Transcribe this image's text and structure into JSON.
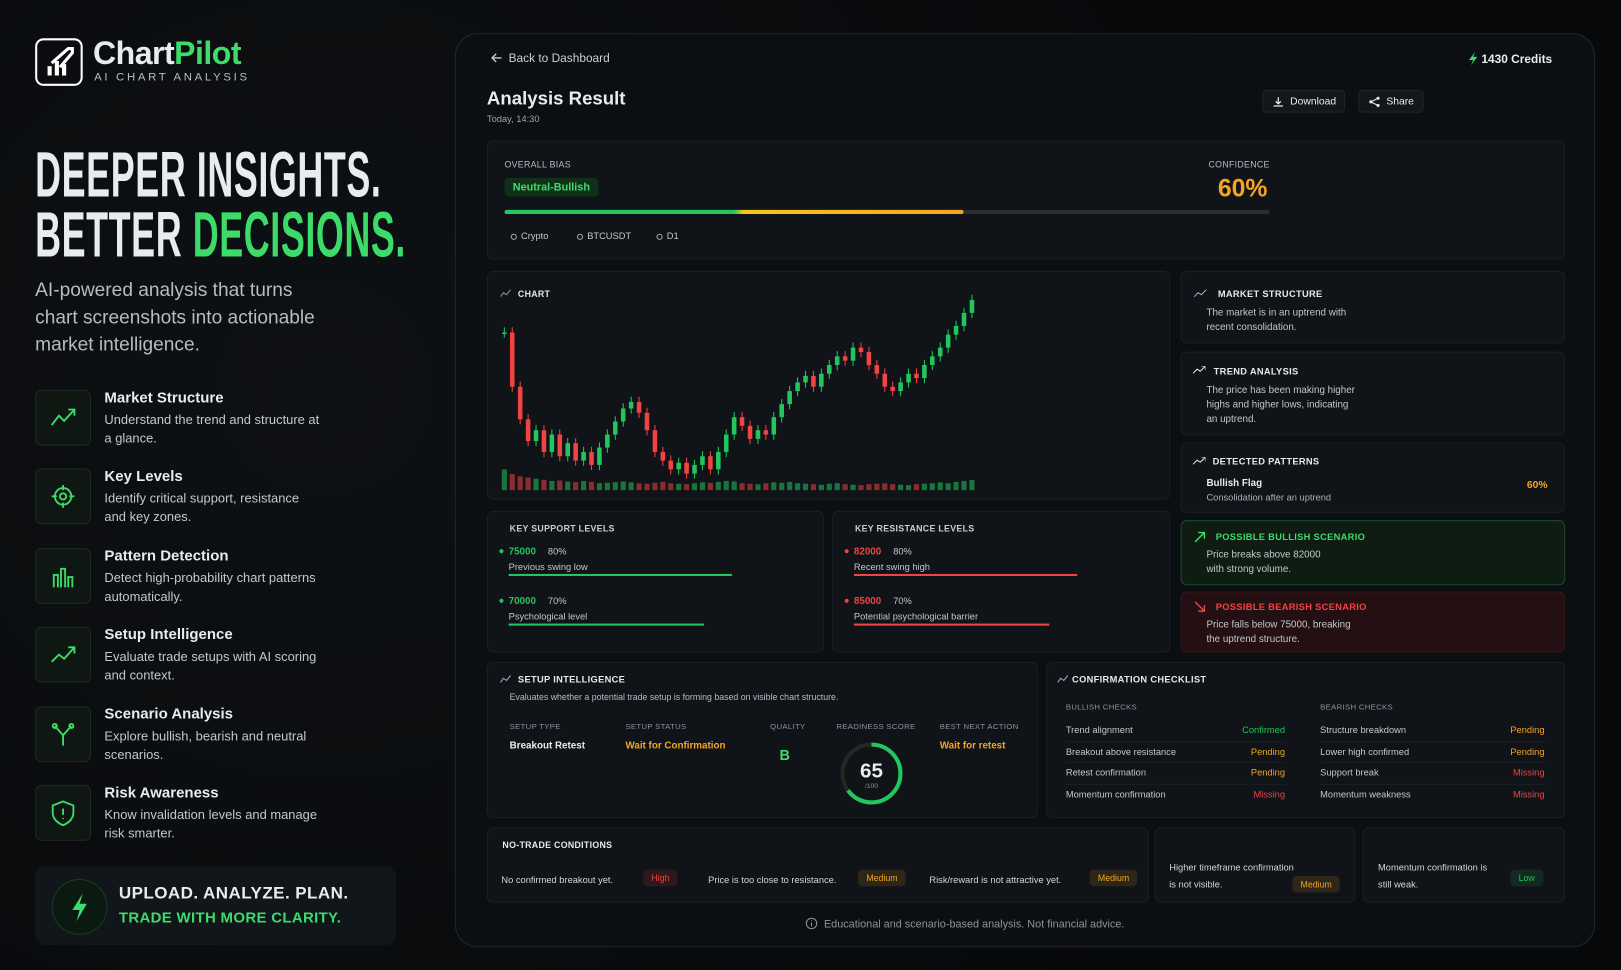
{
  "brand": {
    "name_a": "Chart",
    "name_b": "Pilot",
    "tagline": "AI CHART ANALYSIS"
  },
  "hero": {
    "line1": "DEEPER INSIGHTS.",
    "line2a": "BETTER",
    "line2b": "DECISIONS.",
    "subtitle": "AI-powered analysis that turns chart screenshots into actionable market intelligence."
  },
  "features": [
    {
      "title": "Market Structure",
      "desc": "Understand the trend and structure at a glance."
    },
    {
      "title": "Key Levels",
      "desc": "Identify critical support, resistance and key zones."
    },
    {
      "title": "Pattern Detection",
      "desc": "Detect high-probability chart patterns automatically."
    },
    {
      "title": "Setup Intelligence",
      "desc": "Evaluate trade setups with AI scoring and context."
    },
    {
      "title": "Scenario Analysis",
      "desc": "Explore bullish, bearish and neutral scenarios."
    },
    {
      "title": "Risk Awareness",
      "desc": "Know invalidation levels and manage risk smarter."
    }
  ],
  "cta": {
    "line1": "UPLOAD. ANALYZE. PLAN.",
    "line2": "TRADE WITH MORE CLARITY."
  },
  "header": {
    "back": "Back to Dashboard",
    "credits": "1430 Credits",
    "title": "Analysis Result",
    "time": "Today, 14:30",
    "download": "Download",
    "share": "Share"
  },
  "bias": {
    "label": "OVERALL BIAS",
    "value": "Neutral-Bullish",
    "confidence_title": "CONFIDENCE",
    "confidence": {
      "value": 60,
      "label": "60%"
    },
    "tags": [
      "Crypto",
      "BTCUSDT",
      "D1"
    ]
  },
  "chart": {
    "label": "CHART",
    "up_color": "#22c55e",
    "down_color": "#ef4444",
    "closes": [
      85,
      60,
      45,
      35,
      40,
      30,
      38,
      28,
      34,
      26,
      30,
      24,
      32,
      38,
      44,
      50,
      53,
      48,
      40,
      30,
      26,
      22,
      25,
      20,
      24,
      28,
      22,
      30,
      38,
      46,
      42,
      36,
      40,
      38,
      46,
      52,
      58,
      62,
      65,
      60,
      66,
      70,
      74,
      72,
      78,
      76,
      70,
      66,
      60,
      58,
      62,
      66,
      64,
      70,
      74,
      78,
      84,
      88,
      94,
      100
    ],
    "volumes": [
      90,
      70,
      60,
      55,
      50,
      45,
      40,
      42,
      38,
      35,
      40,
      36,
      30,
      32,
      35,
      38,
      34,
      30,
      28,
      32,
      36,
      30,
      28,
      26,
      30,
      34,
      32,
      36,
      40,
      38,
      30,
      28,
      26,
      30,
      34,
      32,
      36,
      30,
      28,
      26,
      24,
      28,
      30,
      26,
      24,
      22,
      26,
      28,
      30,
      26,
      24,
      22,
      26,
      28,
      30,
      34,
      30,
      36,
      40,
      44
    ]
  },
  "market_structure": {
    "title": "MARKET STRUCTURE",
    "text": "The market is in an uptrend with recent consolidation."
  },
  "trend": {
    "title": "TREND ANALYSIS",
    "text": "The price has been making higher highs and higher lows, indicating an uptrend."
  },
  "patterns": {
    "title": "DETECTED PATTERNS",
    "name": "Bullish Flag",
    "desc": "Consolidation after an uptrend",
    "confidence": "60%"
  },
  "bullish": {
    "title": "POSSIBLE BULLISH SCENARIO",
    "text": "Price breaks above 82000 with strong volume."
  },
  "bearish": {
    "title": "POSSIBLE BEARISH SCENARIO",
    "text": "Price falls below 75000, breaking the uptrend structure."
  },
  "support": {
    "title": "KEY SUPPORT LEVELS",
    "color": "#22c55e",
    "levels": [
      {
        "price": 75000,
        "strength": {
          "value": 80,
          "label": "80%"
        },
        "note": "Previous swing low"
      },
      {
        "price": 70000,
        "strength": {
          "value": 70,
          "label": "70%"
        },
        "note": "Psychological level"
      }
    ]
  },
  "resistance": {
    "title": "KEY RESISTANCE LEVELS",
    "color": "#ef4444",
    "levels": [
      {
        "price": 82000,
        "strength": {
          "value": 80,
          "label": "80%"
        },
        "note": "Recent swing high"
      },
      {
        "price": 85000,
        "strength": {
          "value": 70,
          "label": "70%"
        },
        "note": "Potential psychological barrier"
      }
    ]
  },
  "setup": {
    "title": "SETUP INTELLIGENCE",
    "desc": "Evaluates whether a potential trade setup is forming based on visible chart structure.",
    "type_label": "SETUP TYPE",
    "type": "Breakout Retest",
    "status_label": "SETUP STATUS",
    "status": "Wait for Confirmation",
    "quality_label": "QUALITY",
    "quality": "B",
    "score_label": "READINESS SCORE",
    "score": 65,
    "score_max": {
      "value": 100,
      "label": "/100"
    },
    "action_label": "BEST NEXT ACTION",
    "action": "Wait for retest"
  },
  "checklist": {
    "title": "CONFIRMATION CHECKLIST",
    "bullish": {
      "title": "BULLISH CHECKS",
      "rows": [
        {
          "label": "Trend alignment",
          "status": "Confirmed",
          "color": "#22c55e"
        },
        {
          "label": "Breakout above resistance",
          "status": "Pending",
          "color": "#f5a524"
        },
        {
          "label": "Retest confirmation",
          "status": "Pending",
          "color": "#f5a524"
        },
        {
          "label": "Momentum confirmation",
          "status": "Missing",
          "color": "#ef4444"
        }
      ]
    },
    "bearish": {
      "title": "BEARISH CHECKS",
      "rows": [
        {
          "label": "Structure breakdown",
          "status": "Pending",
          "color": "#f5a524"
        },
        {
          "label": "Lower high confirmed",
          "status": "Pending",
          "color": "#f5a524"
        },
        {
          "label": "Support break",
          "status": "Missing",
          "color": "#ef4444"
        },
        {
          "label": "Momentum weakness",
          "status": "Missing",
          "color": "#ef4444"
        }
      ]
    }
  },
  "no_trade": {
    "title": "NO-TRADE CONDITIONS",
    "items": [
      {
        "text": "No confirmed breakout yet.",
        "level": "High",
        "color": "#ef4444"
      },
      {
        "text": "Price is too close to resistance.",
        "level": "Medium",
        "color": "#f5a524"
      },
      {
        "text": "Risk/reward is not attractive yet.",
        "level": "Medium",
        "color": "#f5a524"
      },
      {
        "text": "Higher timeframe confirmation is not visible.",
        "level": "Medium",
        "color": "#f5a524"
      },
      {
        "text": "Momentum confirmation is still weak.",
        "level": "Low",
        "color": "#22c55e"
      }
    ]
  },
  "footer": {
    "disclaimer": "Educational and scenario-based analysis. Not financial advice."
  }
}
